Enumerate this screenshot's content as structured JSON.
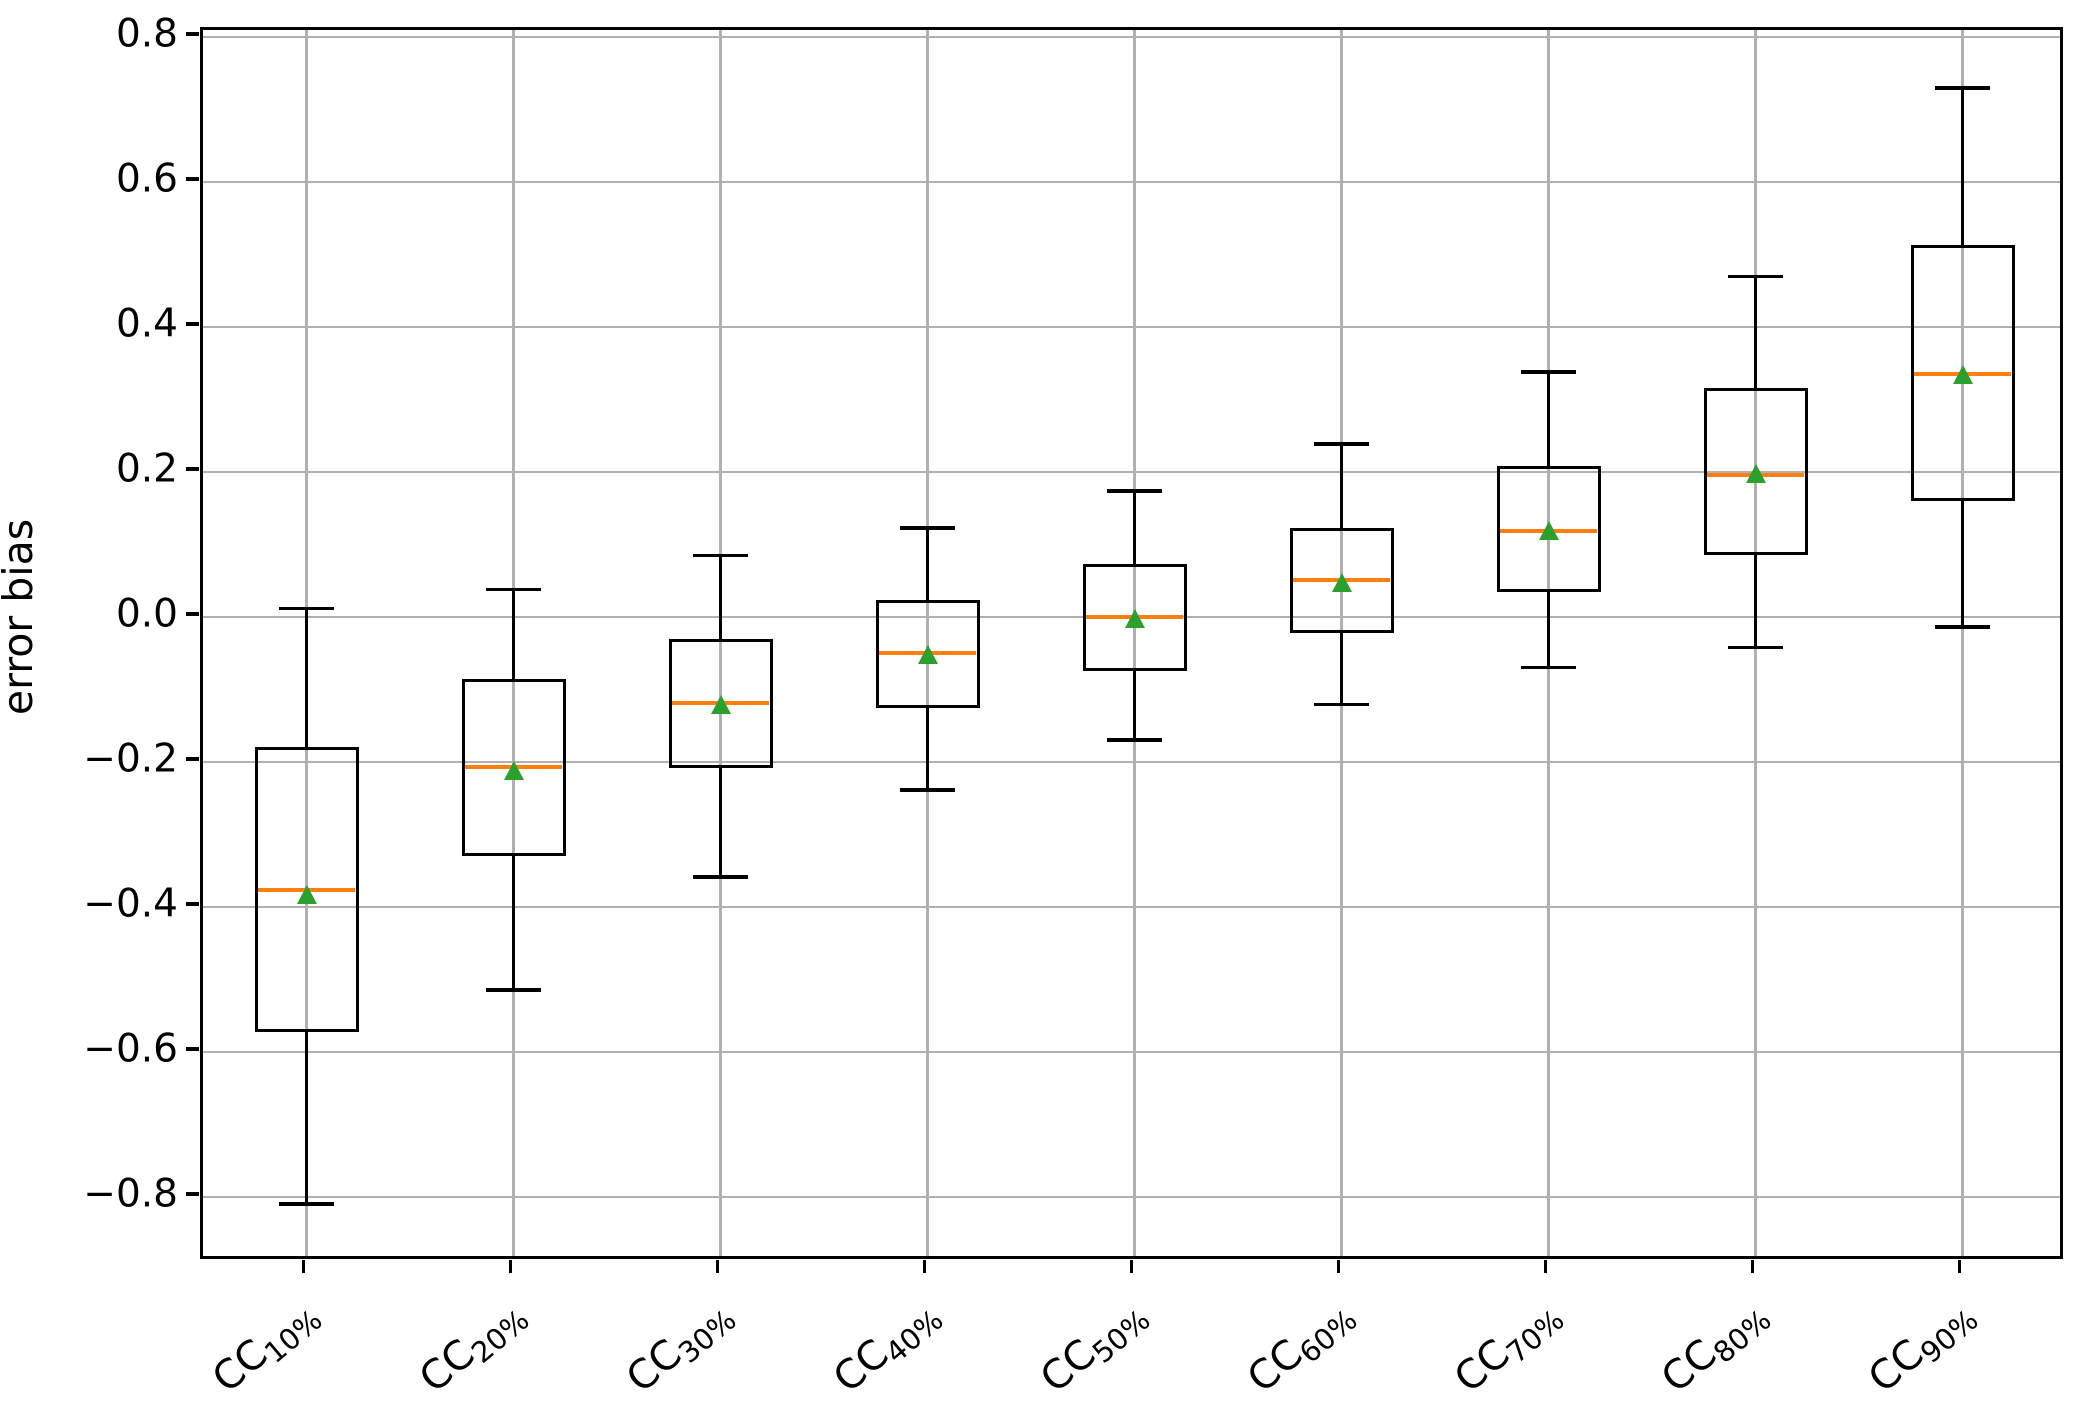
{
  "figure": {
    "background": "#ffffff"
  },
  "chart_data": {
    "type": "box",
    "title": "",
    "xlabel": "",
    "ylabel": "error bias",
    "ylim": [
      -0.89,
      0.81
    ],
    "grid": "both",
    "legend_position": "none",
    "ytick_labels": [
      "0.8",
      "0.6",
      "0.4",
      "0.2",
      "0.0",
      "−0.2",
      "−0.4",
      "−0.6",
      "−0.8"
    ],
    "ytick_values": [
      0.8,
      0.6,
      0.4,
      0.2,
      0.0,
      -0.2,
      -0.4,
      -0.6,
      -0.8
    ],
    "categories": [
      {
        "main": "CC",
        "sub": "10%"
      },
      {
        "main": "CC",
        "sub": "20%"
      },
      {
        "main": "CC",
        "sub": "30%"
      },
      {
        "main": "CC",
        "sub": "40%"
      },
      {
        "main": "CC",
        "sub": "50%"
      },
      {
        "main": "CC",
        "sub": "60%"
      },
      {
        "main": "CC",
        "sub": "70%"
      },
      {
        "main": "CC",
        "sub": "80%"
      },
      {
        "main": "CC",
        "sub": "90%"
      }
    ],
    "boxes": [
      {
        "label": "CC 10%",
        "whislo": -0.81,
        "q1": -0.573,
        "med": -0.376,
        "mean": -0.383,
        "q3": -0.18,
        "whishi": 0.012
      },
      {
        "label": "CC 20%",
        "whislo": -0.515,
        "q1": -0.33,
        "med": -0.207,
        "mean": -0.212,
        "q3": -0.086,
        "whishi": 0.038
      },
      {
        "label": "CC 30%",
        "whislo": -0.359,
        "q1": -0.208,
        "med": -0.118,
        "mean": -0.121,
        "q3": -0.03,
        "whishi": 0.085
      },
      {
        "label": "CC 40%",
        "whislo": -0.239,
        "q1": -0.125,
        "med": -0.05,
        "mean": -0.052,
        "q3": 0.024,
        "whishi": 0.123
      },
      {
        "label": "CC 50%",
        "whislo": -0.17,
        "q1": -0.074,
        "med": 0.0,
        "mean": -0.002,
        "q3": 0.073,
        "whishi": 0.174
      },
      {
        "label": "CC 60%",
        "whislo": -0.121,
        "q1": -0.022,
        "med": 0.051,
        "mean": 0.048,
        "q3": 0.123,
        "whishi": 0.239
      },
      {
        "label": "CC 70%",
        "whislo": -0.07,
        "q1": 0.034,
        "med": 0.119,
        "mean": 0.119,
        "q3": 0.209,
        "whishi": 0.338
      },
      {
        "label": "CC 80%",
        "whislo": -0.042,
        "q1": 0.085,
        "med": 0.196,
        "mean": 0.198,
        "q3": 0.316,
        "whishi": 0.47
      },
      {
        "label": "CC 90%",
        "whislo": -0.014,
        "q1": 0.16,
        "med": 0.335,
        "mean": 0.334,
        "q3": 0.513,
        "whishi": 0.73
      }
    ],
    "colors": {
      "box_edge": "#000000",
      "whisker": "#000000",
      "median": "#ff7f0e",
      "mean_marker": "#2ca02c",
      "grid": "#b0b0b0",
      "spine": "#000000",
      "background": "#ffffff"
    }
  }
}
